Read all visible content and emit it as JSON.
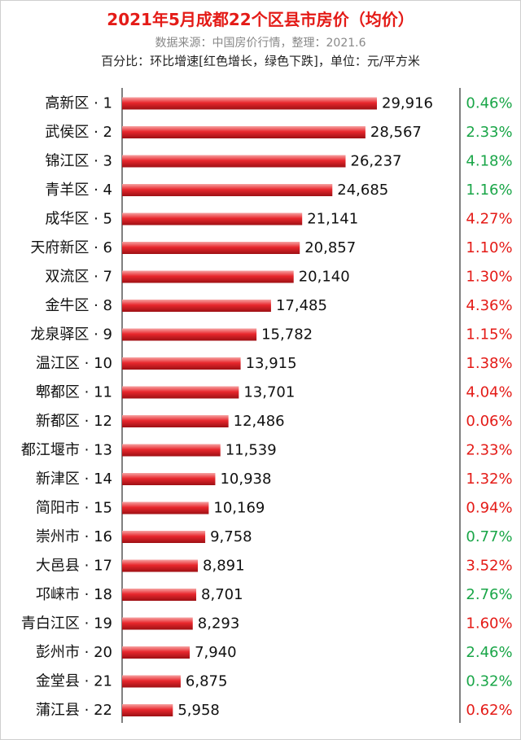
{
  "header": {
    "title": "2021年5月成都22个区县市房价（均价）",
    "source": "数据来源：中国房价行情，整理：2021.6",
    "note": "百分比：环比增速[红色增长，绿色下跌]，单位：元/平方米"
  },
  "colors": {
    "title": "#e41b17",
    "bar": "#e8272d",
    "increase": "#e41b17",
    "decrease": "#1aa648"
  },
  "chart_data": {
    "type": "bar",
    "orientation": "horizontal",
    "categories": [
      "高新区 · 1",
      "武侯区 · 2",
      "锦江区 · 3",
      "青羊区 · 4",
      "成华区 · 5",
      "天府新区 · 6",
      "双流区 · 7",
      "金牛区 · 8",
      "龙泉驿区 · 9",
      "温江区 · 10",
      "郫都区 · 11",
      "新都区 · 12",
      "都江堰市 · 13",
      "新津区 · 14",
      "简阳市 · 15",
      "崇州市 · 16",
      "大邑县 · 17",
      "邛崃市 · 18",
      "青白江区 · 19",
      "彭州市 · 20",
      "金堂县 · 21",
      "蒲江县 · 22"
    ],
    "values": [
      29916,
      28567,
      26237,
      24685,
      21141,
      20857,
      20140,
      17485,
      15782,
      13915,
      13701,
      12486,
      11539,
      10938,
      10169,
      9758,
      8891,
      8701,
      8293,
      7940,
      6875,
      5958
    ],
    "value_labels": [
      "29,916",
      "28,567",
      "26,237",
      "24,685",
      "21,141",
      "20,857",
      "20,140",
      "17,485",
      "15,782",
      "13,915",
      "13,701",
      "12,486",
      "11,539",
      "10,938",
      "10,169",
      "9,758",
      "8,891",
      "8,701",
      "8,293",
      "7,940",
      "6,875",
      "5,958"
    ],
    "changes": [
      "0.46%",
      "2.33%",
      "4.18%",
      "1.16%",
      "4.27%",
      "1.10%",
      "1.30%",
      "4.36%",
      "1.15%",
      "1.38%",
      "4.04%",
      "0.06%",
      "2.33%",
      "1.32%",
      "0.94%",
      "0.77%",
      "3.52%",
      "2.76%",
      "1.60%",
      "2.46%",
      "0.32%",
      "0.62%"
    ],
    "change_trend": [
      "down",
      "down",
      "down",
      "down",
      "up",
      "up",
      "up",
      "up",
      "up",
      "up",
      "up",
      "up",
      "up",
      "up",
      "up",
      "down",
      "up",
      "down",
      "up",
      "down",
      "down",
      "up"
    ],
    "xlim": [
      0,
      30000
    ],
    "grid": false,
    "legend": "none"
  }
}
